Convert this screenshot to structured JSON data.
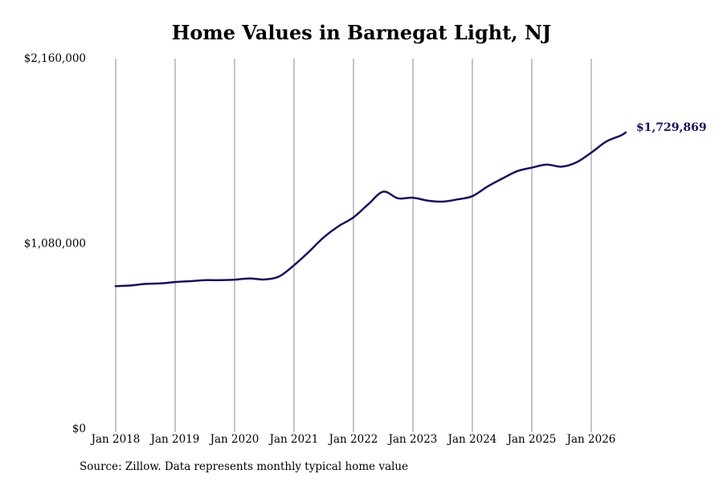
{
  "chart_data": {
    "type": "line",
    "title": "Home Values in Barnegat Light, NJ",
    "source": "Source: Zillow. Data represents monthly typical home value",
    "ylim": [
      0,
      2160000
    ],
    "y_ticks": [
      {
        "value": 0,
        "label": "$0"
      },
      {
        "value": 1080000,
        "label": "$1,080,000"
      },
      {
        "value": 2160000,
        "label": "$2,160,000"
      }
    ],
    "x_ticks": [
      {
        "value": 2018.0,
        "label": "Jan 2018"
      },
      {
        "value": 2019.0,
        "label": "Jan 2019"
      },
      {
        "value": 2020.0,
        "label": "Jan 2020"
      },
      {
        "value": 2021.0,
        "label": "Jan 2021"
      },
      {
        "value": 2022.0,
        "label": "Jan 2022"
      },
      {
        "value": 2023.0,
        "label": "Jan 2023"
      },
      {
        "value": 2024.0,
        "label": "Jan 2024"
      },
      {
        "value": 2025.0,
        "label": "Jan 2025"
      },
      {
        "value": 2026.0,
        "label": "Jan 2026"
      }
    ],
    "grid": "vertical",
    "line_color": "#14125c",
    "end_label": "$1,729,869",
    "series": [
      {
        "points": [
          [
            2018.0,
            833000
          ],
          [
            2018.25,
            837000
          ],
          [
            2018.5,
            846000
          ],
          [
            2018.75,
            849000
          ],
          [
            2019.0,
            857000
          ],
          [
            2019.25,
            862000
          ],
          [
            2019.5,
            868000
          ],
          [
            2019.75,
            868000
          ],
          [
            2020.0,
            871000
          ],
          [
            2020.25,
            878000
          ],
          [
            2020.5,
            872000
          ],
          [
            2020.75,
            890000
          ],
          [
            2021.0,
            955000
          ],
          [
            2021.25,
            1033000
          ],
          [
            2021.5,
            1118000
          ],
          [
            2021.75,
            1183000
          ],
          [
            2022.0,
            1234000
          ],
          [
            2022.25,
            1311000
          ],
          [
            2022.5,
            1384000
          ],
          [
            2022.75,
            1345000
          ],
          [
            2023.0,
            1349000
          ],
          [
            2023.25,
            1332000
          ],
          [
            2023.5,
            1326000
          ],
          [
            2023.75,
            1339000
          ],
          [
            2024.0,
            1358000
          ],
          [
            2024.25,
            1413000
          ],
          [
            2024.5,
            1460000
          ],
          [
            2024.75,
            1503000
          ],
          [
            2025.0,
            1524000
          ],
          [
            2025.25,
            1542000
          ],
          [
            2025.5,
            1530000
          ],
          [
            2025.75,
            1555000
          ],
          [
            2026.0,
            1612000
          ],
          [
            2026.25,
            1676000
          ],
          [
            2026.5,
            1712000
          ],
          [
            2026.58,
            1729869
          ]
        ]
      }
    ]
  }
}
